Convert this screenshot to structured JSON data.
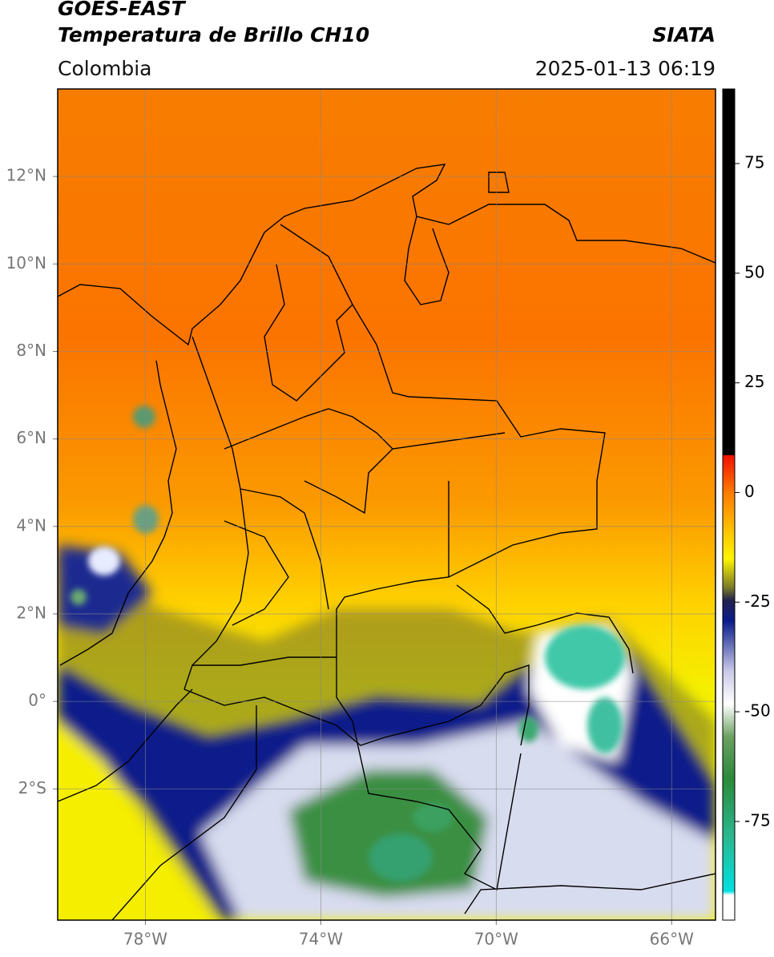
{
  "header": {
    "title": "GOES-EAST",
    "subtitle": "Temperatura de Brillo CH10",
    "source": "SIATA",
    "region": "Colombia",
    "datetime": "2025-01-13 06:19"
  },
  "map": {
    "xlim": [
      -80,
      -65
    ],
    "ylim": [
      -5,
      14
    ],
    "xticks": [
      {
        "value": -78,
        "label": "78°W"
      },
      {
        "value": -74,
        "label": "74°W"
      },
      {
        "value": -70,
        "label": "70°W"
      },
      {
        "value": -66,
        "label": "66°W"
      }
    ],
    "yticks": [
      {
        "value": 12,
        "label": "12°N"
      },
      {
        "value": 10,
        "label": "10°N"
      },
      {
        "value": 8,
        "label": "8°N"
      },
      {
        "value": 6,
        "label": "6°N"
      },
      {
        "value": 4,
        "label": "4°N"
      },
      {
        "value": 2,
        "label": "2°N"
      },
      {
        "value": 0,
        "label": "0°"
      },
      {
        "value": -2,
        "label": "2°S"
      }
    ]
  },
  "colorbar": {
    "lim": [
      -97.5,
      92
    ],
    "ticks": [
      75,
      50,
      25,
      0,
      -25,
      -50,
      -75
    ]
  }
}
